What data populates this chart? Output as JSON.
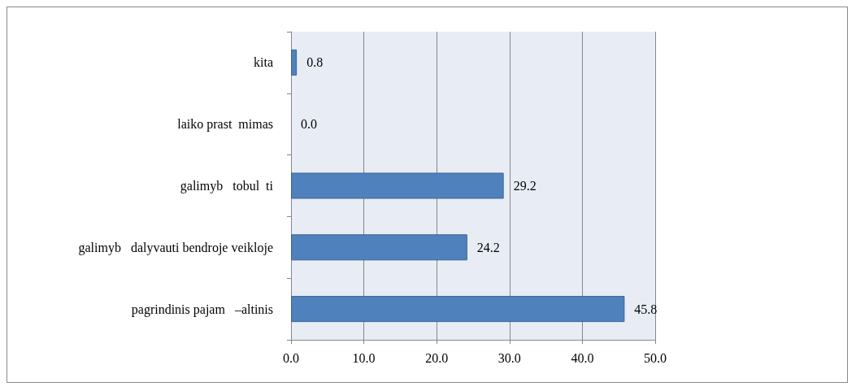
{
  "chart_data": {
    "type": "bar",
    "orientation": "horizontal",
    "categories": [
      "kita",
      "laiko prast  mimas",
      "galimyb   tobul  ti",
      "galimyb   dalyvauti bendroje veikloje",
      "pagrindinis pajam   –altinis"
    ],
    "values": [
      0.8,
      0.0,
      29.2,
      24.2,
      45.8
    ],
    "value_labels": [
      "0.8",
      "0.0",
      "29.2",
      "24.2",
      "45.8"
    ],
    "color": "#4f81bd",
    "xlim": [
      0,
      50
    ],
    "xticks": [
      {
        "value": 0,
        "label": "0.0"
      },
      {
        "value": 10,
        "label": "10.0"
      },
      {
        "value": 20,
        "label": "20.0"
      },
      {
        "value": 30,
        "label": "30.0"
      },
      {
        "value": 40,
        "label": "40.0"
      },
      {
        "value": 50,
        "label": "50.0"
      }
    ],
    "grid": "x"
  }
}
